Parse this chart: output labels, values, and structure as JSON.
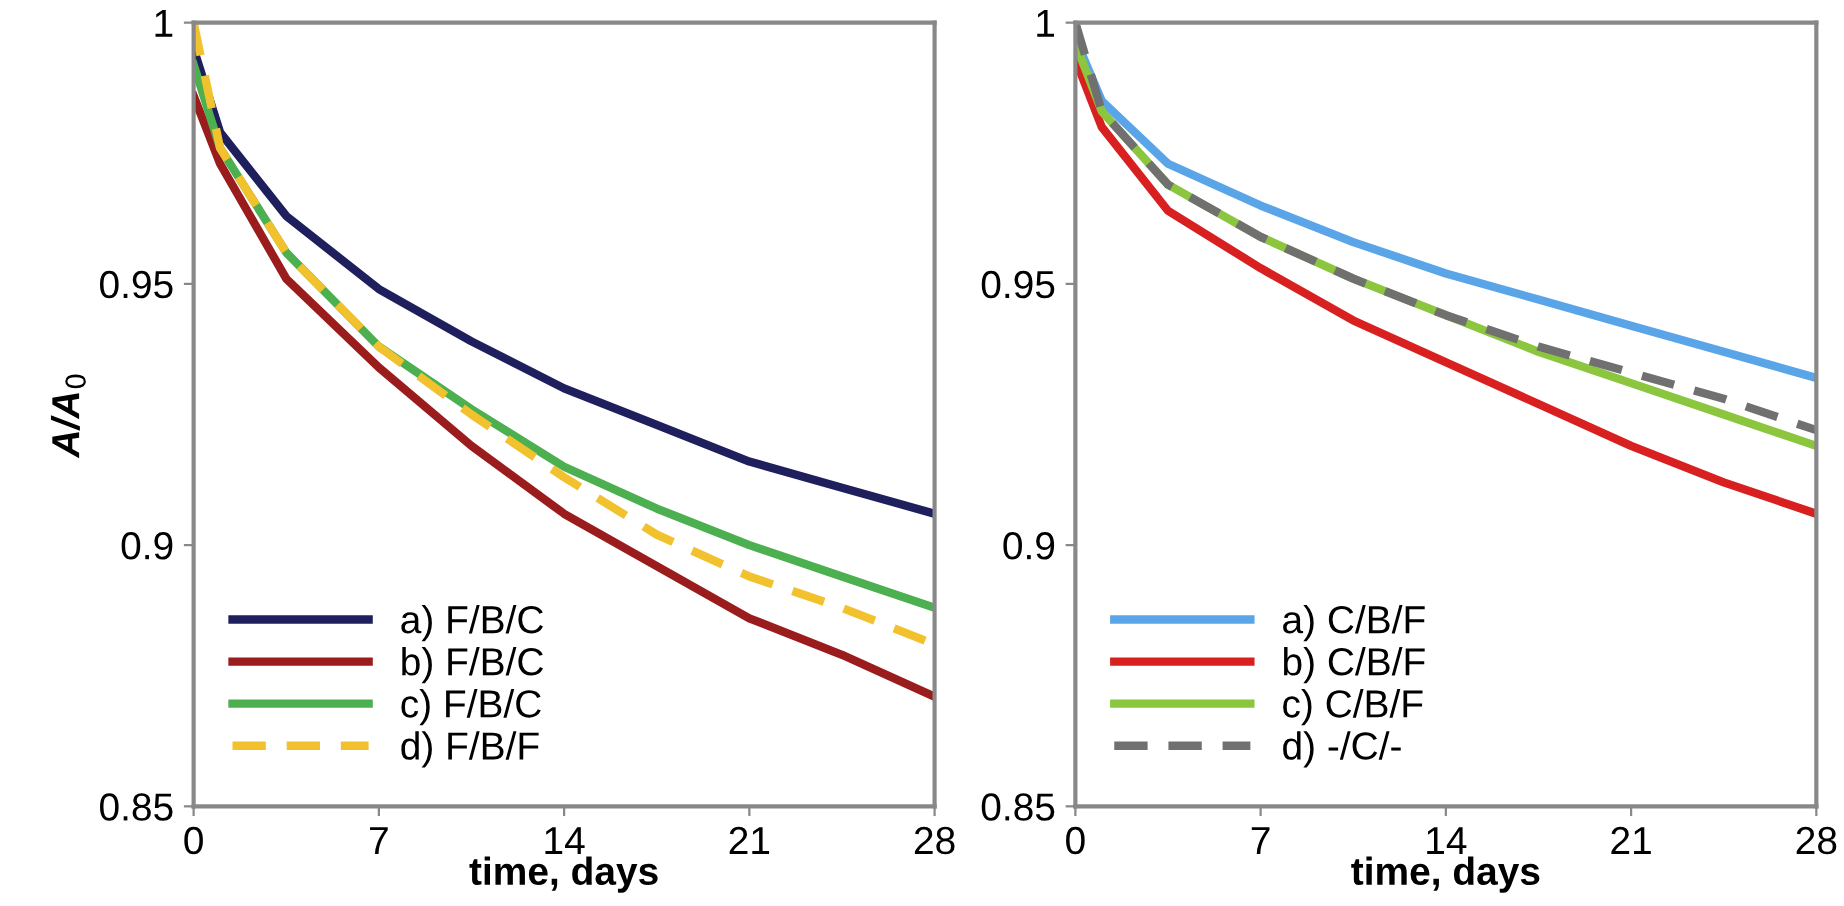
{
  "chart_data": [
    {
      "type": "line",
      "xlabel": "time, days",
      "ylabel": "A/A$_{0}$",
      "xlim": [
        0,
        28
      ],
      "ylim": [
        0.85,
        1
      ],
      "xticks": [
        0,
        7,
        14,
        21,
        28
      ],
      "yticks": [
        0.85,
        0.9,
        0.95,
        1
      ],
      "grid": false,
      "legend": "bottom left",
      "x": [
        0,
        1,
        3.5,
        7,
        10.5,
        14,
        17.5,
        21,
        24.5,
        28
      ],
      "series": [
        {
          "name": "a) F/B/C",
          "color": "#1f1f5e",
          "line_style": "solid",
          "values": [
            0.995,
            0.979,
            0.963,
            0.949,
            0.939,
            0.93,
            0.923,
            0.916,
            0.911,
            0.906
          ]
        },
        {
          "name": "b) F/B/C",
          "color": "#9b1c1c",
          "line_style": "solid",
          "values": [
            0.986,
            0.973,
            0.951,
            0.934,
            0.919,
            0.906,
            0.896,
            0.886,
            0.879,
            0.871
          ]
        },
        {
          "name": "c) F/B/C",
          "color": "#4caf50",
          "line_style": "solid",
          "values": [
            0.992,
            0.976,
            0.956,
            0.938,
            0.926,
            0.915,
            0.907,
            0.9,
            0.894,
            0.888
          ]
        },
        {
          "name": "d) F/B/F",
          "color": "#f2c12e",
          "line_style": "dashed",
          "values": [
            1.0,
            0.976,
            0.956,
            0.938,
            0.925,
            0.913,
            0.902,
            0.894,
            0.888,
            0.881
          ]
        }
      ]
    },
    {
      "type": "line",
      "xlabel": "time, days",
      "xlim": [
        0,
        28
      ],
      "ylim": [
        0.85,
        1
      ],
      "xticks": [
        0,
        7,
        14,
        21,
        28
      ],
      "yticks": [
        0.85,
        0.9,
        0.95,
        1
      ],
      "grid": false,
      "legend": "bottom left",
      "x": [
        0,
        1,
        3.5,
        7,
        10.5,
        14,
        17.5,
        21,
        24.5,
        28
      ],
      "series": [
        {
          "name": "a) C/B/F",
          "color": "#5aa5e8",
          "line_style": "solid",
          "values": [
            0.997,
            0.985,
            0.973,
            0.965,
            0.958,
            0.952,
            0.947,
            0.942,
            0.937,
            0.932
          ]
        },
        {
          "name": "b) C/B/F",
          "color": "#d92020",
          "line_style": "solid",
          "values": [
            0.993,
            0.98,
            0.964,
            0.953,
            0.943,
            0.935,
            0.927,
            0.919,
            0.912,
            0.906
          ]
        },
        {
          "name": "c) C/B/F",
          "color": "#8cc63f",
          "line_style": "solid",
          "values": [
            0.996,
            0.983,
            0.969,
            0.959,
            0.951,
            0.944,
            0.937,
            0.931,
            0.925,
            0.919
          ]
        },
        {
          "name": "d) -/C/-",
          "color": "#707070",
          "line_style": "dashed",
          "values": [
            1.0,
            0.983,
            0.969,
            0.959,
            0.951,
            0.944,
            0.938,
            0.933,
            0.928,
            0.922
          ]
        }
      ]
    }
  ]
}
